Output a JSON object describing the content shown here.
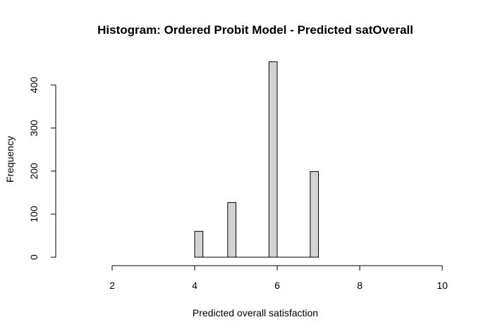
{
  "chart_data": {
    "type": "bar",
    "title": "Histogram: Ordered Probit Model - Predicted satOverall",
    "xlabel": "Predicted overall satisfaction",
    "ylabel": "Frequency",
    "bin_width": 0.2,
    "bins": [
      {
        "x0": 4.0,
        "x1": 4.2,
        "value": 60
      },
      {
        "x0": 4.8,
        "x1": 5.0,
        "value": 127
      },
      {
        "x0": 5.8,
        "x1": 6.0,
        "value": 454
      },
      {
        "x0": 6.8,
        "x1": 7.0,
        "value": 199
      }
    ],
    "baseline_range": [
      4.0,
      7.0
    ],
    "xlim": [
      0.5,
      10
    ],
    "ylim": [
      0,
      455
    ],
    "xticks": [
      2,
      4,
      6,
      8,
      10
    ],
    "yticks": [
      0,
      100,
      200,
      300,
      400
    ],
    "bar_fill": "#d3d3d3",
    "bar_stroke": "#000000",
    "grid": false,
    "legend": "none"
  }
}
